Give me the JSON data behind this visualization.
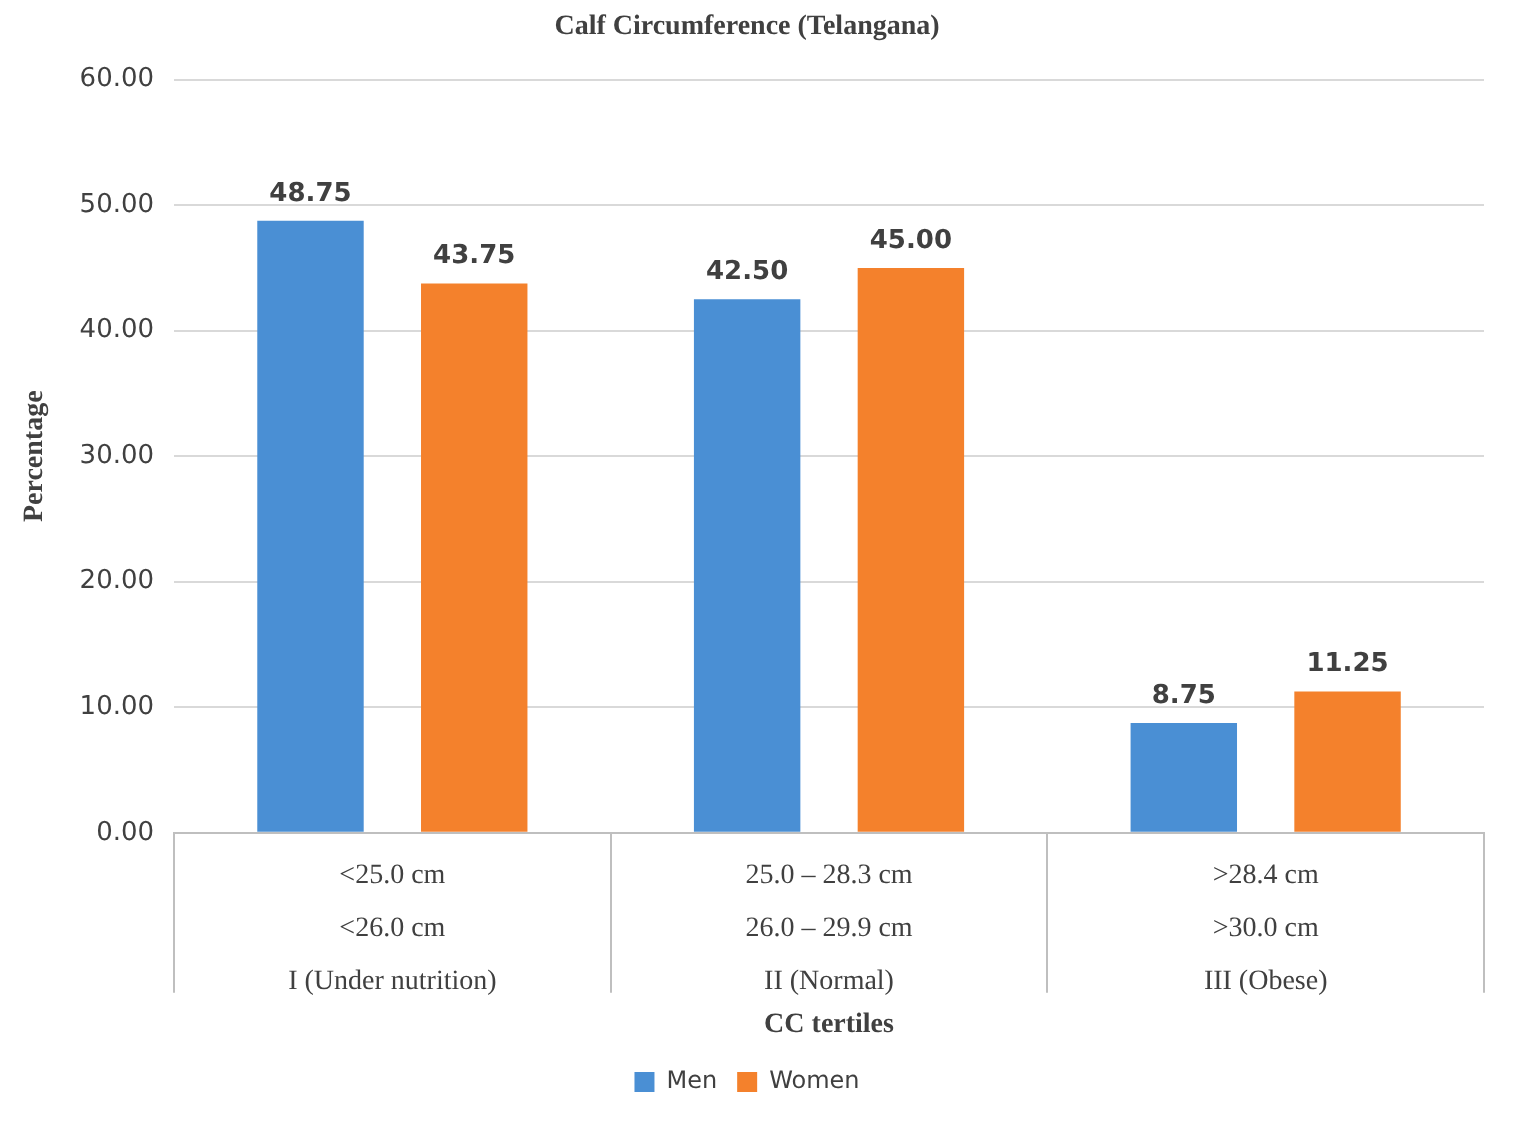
{
  "chart_data": {
    "type": "bar",
    "title": "Calf Circumference (Telangana)",
    "xlabel": "CC tertiles",
    "ylabel": "Percentage",
    "categories": [
      "<25.0 cm\n<26.0 cm\nI (Under nutrition)",
      "25.0 – 28.3 cm\n26.0 – 29.9 cm\nII (Normal)",
      ">28.4 cm\n>30.0 cm\nIII (Obese)"
    ],
    "series": [
      {
        "name": "Men",
        "color": "#4a8fd4",
        "values": [
          48.75,
          42.5,
          8.75
        ],
        "value_labels": [
          "48.75",
          "42.50",
          "8.75"
        ]
      },
      {
        "name": "Women",
        "color": "#f4812c",
        "values": [
          43.75,
          45.0,
          11.25
        ],
        "value_labels": [
          "43.75",
          "45.00",
          "11.25"
        ]
      }
    ],
    "ylim": [
      0,
      60
    ],
    "yticks": [
      {
        "value": 0,
        "label": "0.00"
      },
      {
        "value": 10,
        "label": "10.00"
      },
      {
        "value": 20,
        "label": "20.00"
      },
      {
        "value": 30,
        "label": "30.00"
      },
      {
        "value": 40,
        "label": "40.00"
      },
      {
        "value": 50,
        "label": "50.00"
      },
      {
        "value": 60,
        "label": "60.00"
      }
    ],
    "grid": "y",
    "legend": "bottom"
  }
}
